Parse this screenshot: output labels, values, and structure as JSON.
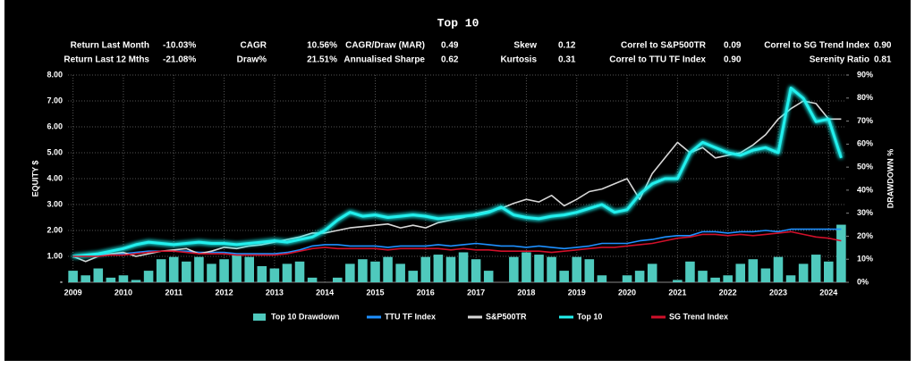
{
  "chart_data": {
    "type": "line",
    "title": "Top 10",
    "stats": [
      {
        "label": "Return Last Month",
        "value": "-10.03%"
      },
      {
        "label": "CAGR",
        "value": "10.56%"
      },
      {
        "label": "CAGR/Draw (MAR)",
        "value": "0.49"
      },
      {
        "label": "Skew",
        "value": "0.12"
      },
      {
        "label": "Correl to S&P500TR",
        "value": "0.09"
      },
      {
        "label": "Correl to SG Trend Index",
        "value": "0.90"
      },
      {
        "label": "Return Last 12 Mths",
        "value": "-21.08%"
      },
      {
        "label": "Draw%",
        "value": "21.51%"
      },
      {
        "label": "Annualised Sharpe",
        "value": "0.62"
      },
      {
        "label": "Kurtosis",
        "value": "0.31"
      },
      {
        "label": "Correl to TTU TF Index",
        "value": "0.90"
      },
      {
        "label": "Serenity Ratio",
        "value": "0.81"
      }
    ],
    "ylabel": "EQUITY $",
    "y2label": "DRAWDOWN %",
    "grid": true,
    "legend": "bottom",
    "xlim": [
      2008.9,
      2024.35
    ],
    "xticks": [
      2009,
      2010,
      2011,
      2012,
      2013,
      2014,
      2015,
      2016,
      2017,
      2018,
      2019,
      2020,
      2021,
      2022,
      2023,
      2024
    ],
    "ylim": [
      0,
      8
    ],
    "yticks": [
      {
        "value": 0,
        "label": "-"
      },
      {
        "value": 1,
        "label": "1.00"
      },
      {
        "value": 2,
        "label": "2.00"
      },
      {
        "value": 3,
        "label": "3.00"
      },
      {
        "value": 4,
        "label": "4.00"
      },
      {
        "value": 5,
        "label": "5.00"
      },
      {
        "value": 6,
        "label": "6.00"
      },
      {
        "value": 7,
        "label": "7.00"
      },
      {
        "value": 8,
        "label": "8.00"
      }
    ],
    "y2lim": [
      0,
      90
    ],
    "y2ticks": [
      {
        "value": 0,
        "label": "0%"
      },
      {
        "value": 10,
        "label": "10%"
      },
      {
        "value": 20,
        "label": "20%"
      },
      {
        "value": 30,
        "label": "30%"
      },
      {
        "value": 40,
        "label": "40%"
      },
      {
        "value": 50,
        "label": "50%"
      },
      {
        "value": 60,
        "label": "60%"
      },
      {
        "value": 70,
        "label": "70%"
      },
      {
        "value": 80,
        "label": "80%"
      },
      {
        "value": 90,
        "label": "90%"
      }
    ],
    "x": [
      2009,
      2009.25,
      2009.5,
      2009.75,
      2010,
      2010.25,
      2010.5,
      2010.75,
      2011,
      2011.25,
      2011.5,
      2011.75,
      2012,
      2012.25,
      2012.5,
      2012.75,
      2013,
      2013.25,
      2013.5,
      2013.75,
      2014,
      2014.25,
      2014.5,
      2014.75,
      2015,
      2015.25,
      2015.5,
      2015.75,
      2016,
      2016.25,
      2016.5,
      2016.75,
      2017,
      2017.25,
      2017.5,
      2017.75,
      2018,
      2018.25,
      2018.5,
      2018.75,
      2019,
      2019.25,
      2019.5,
      2019.75,
      2020,
      2020.25,
      2020.5,
      2020.75,
      2021,
      2021.25,
      2021.5,
      2021.75,
      2022,
      2022.25,
      2022.5,
      2022.75,
      2023,
      2023.25,
      2023.5,
      2023.75,
      2024,
      2024.25
    ],
    "series": [
      {
        "name": "Top 10 Drawdown",
        "type": "bar",
        "axis": "y2",
        "color": "#4fc9bd",
        "values": [
          5,
          3,
          6,
          2,
          3,
          1,
          5,
          10,
          11,
          9,
          11,
          8,
          10,
          12,
          11,
          7,
          6,
          8,
          9,
          2,
          0,
          2,
          8,
          10,
          9,
          11,
          8,
          5,
          11,
          12,
          11,
          13,
          10,
          5,
          0,
          11,
          13,
          12,
          11,
          5,
          11,
          10,
          3,
          0,
          3,
          5,
          8,
          0,
          1,
          9,
          5,
          2,
          3,
          8,
          10,
          6,
          11,
          3,
          8,
          12,
          9,
          25
        ]
      },
      {
        "name": "TTU TF Index",
        "type": "line",
        "color": "#1e90ff",
        "values": [
          1.0,
          1.05,
          1.05,
          1.1,
          1.1,
          1.15,
          1.2,
          1.2,
          1.2,
          1.2,
          1.15,
          1.15,
          1.15,
          1.1,
          1.1,
          1.1,
          1.1,
          1.15,
          1.25,
          1.4,
          1.45,
          1.45,
          1.4,
          1.4,
          1.4,
          1.35,
          1.4,
          1.4,
          1.4,
          1.45,
          1.4,
          1.45,
          1.5,
          1.45,
          1.4,
          1.4,
          1.35,
          1.4,
          1.35,
          1.3,
          1.35,
          1.4,
          1.5,
          1.5,
          1.5,
          1.6,
          1.65,
          1.75,
          1.8,
          1.8,
          1.95,
          1.95,
          1.9,
          1.95,
          1.95,
          2.0,
          1.95,
          2.05,
          2.05,
          2.05,
          2.05,
          2.05
        ]
      },
      {
        "name": "S&P500TR",
        "type": "line",
        "color": "#d8d8d8",
        "values": [
          1.0,
          0.8,
          1.0,
          1.1,
          1.15,
          1.0,
          1.1,
          1.2,
          1.25,
          1.3,
          1.1,
          1.2,
          1.35,
          1.3,
          1.4,
          1.45,
          1.55,
          1.65,
          1.75,
          1.9,
          1.9,
          2.0,
          2.1,
          2.15,
          2.2,
          2.25,
          2.1,
          2.2,
          2.1,
          2.3,
          2.4,
          2.5,
          2.65,
          2.75,
          2.85,
          3.05,
          3.2,
          3.1,
          3.35,
          2.95,
          3.2,
          3.5,
          3.6,
          3.8,
          4.0,
          3.2,
          4.2,
          4.8,
          5.4,
          5.0,
          5.2,
          4.8,
          4.9,
          5.0,
          5.3,
          5.7,
          6.3,
          6.7,
          7.0,
          6.9,
          6.3,
          6.3
        ]
      },
      {
        "name": "Top 10",
        "type": "line",
        "color": "#22f0ee",
        "glow": true,
        "values": [
          1.0,
          1.05,
          1.1,
          1.2,
          1.3,
          1.45,
          1.55,
          1.5,
          1.45,
          1.5,
          1.55,
          1.5,
          1.5,
          1.45,
          1.5,
          1.55,
          1.6,
          1.55,
          1.65,
          1.75,
          2.0,
          2.4,
          2.7,
          2.55,
          2.6,
          2.5,
          2.55,
          2.6,
          2.55,
          2.45,
          2.5,
          2.55,
          2.6,
          2.7,
          2.9,
          2.6,
          2.5,
          2.45,
          2.55,
          2.6,
          2.7,
          2.85,
          3.0,
          2.7,
          2.8,
          3.4,
          3.8,
          4.0,
          4.0,
          5.0,
          5.4,
          5.2,
          5.0,
          4.9,
          5.1,
          5.2,
          5.0,
          7.5,
          7.1,
          6.2,
          6.3,
          4.8
        ]
      },
      {
        "name": "SG Trend Index",
        "type": "line",
        "color": "#d0102a",
        "values": [
          1.0,
          1.0,
          1.0,
          1.05,
          1.05,
          1.1,
          1.15,
          1.2,
          1.2,
          1.15,
          1.1,
          1.1,
          1.1,
          1.05,
          1.05,
          1.05,
          1.05,
          1.1,
          1.2,
          1.3,
          1.35,
          1.3,
          1.3,
          1.3,
          1.3,
          1.25,
          1.3,
          1.3,
          1.3,
          1.3,
          1.25,
          1.3,
          1.25,
          1.25,
          1.2,
          1.2,
          1.2,
          1.2,
          1.15,
          1.2,
          1.25,
          1.3,
          1.35,
          1.35,
          1.4,
          1.45,
          1.5,
          1.6,
          1.7,
          1.75,
          1.85,
          1.85,
          1.8,
          1.85,
          1.8,
          1.85,
          1.9,
          1.95,
          1.85,
          1.75,
          1.7,
          1.6
        ]
      }
    ]
  }
}
